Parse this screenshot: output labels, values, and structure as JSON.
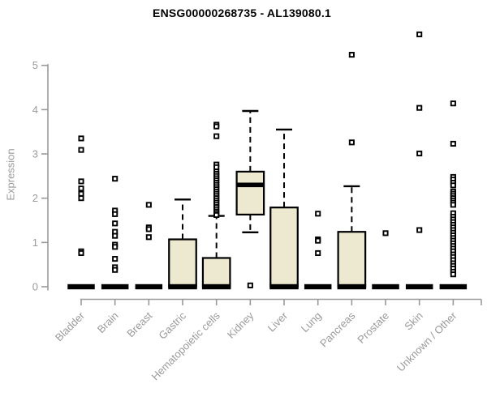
{
  "chart_data": {
    "type": "boxplot",
    "title": "ENSG00000268735 - AL139080.1",
    "ylabel": "Expression",
    "xlabel": "",
    "ylim": [
      0,
      5
    ],
    "yticks": [
      0,
      1,
      2,
      3,
      4,
      5
    ],
    "grid": false,
    "legend": "none",
    "colors": {
      "box_fill": "#EDE8D0",
      "box_stroke": "#000000",
      "median": "#000000",
      "whisker": "#000000",
      "outlier_stroke": "#000000",
      "outlier_fill": "#ffffff",
      "axis": "#999999",
      "tick_label": "#9a9a9a",
      "title": "#000000",
      "background": "#ffffff"
    },
    "categories": [
      "Bladder",
      "Brain",
      "Breast",
      "Gastric",
      "Hematopoietic cells",
      "Kidney",
      "Liver",
      "Lung",
      "Pancreas",
      "Prostate",
      "Skin",
      "Unknown / Other"
    ],
    "series": [
      {
        "name": "Bladder",
        "q1": 0,
        "median": 0,
        "q3": 0,
        "whisker_low": 0,
        "whisker_high": 0,
        "outliers": [
          3.35,
          3.09,
          2.38,
          2.22,
          2.1,
          2.0,
          0.8,
          0.76
        ]
      },
      {
        "name": "Brain",
        "q1": 0,
        "median": 0,
        "q3": 0,
        "whisker_low": 0,
        "whisker_high": 0,
        "outliers": [
          2.44,
          1.72,
          1.64,
          1.43,
          1.24,
          1.15,
          0.95,
          0.9,
          0.63,
          0.44,
          0.38
        ]
      },
      {
        "name": "Breast",
        "q1": 0,
        "median": 0,
        "q3": 0,
        "whisker_low": 0,
        "whisker_high": 0,
        "outliers": [
          1.85,
          1.34,
          1.3,
          1.12
        ]
      },
      {
        "name": "Gastric",
        "q1": 0,
        "median": 0,
        "q3": 1.07,
        "whisker_low": 0,
        "whisker_high": 1.97,
        "outliers": []
      },
      {
        "name": "Hematopoietic cells",
        "q1": 0,
        "median": 0,
        "q3": 0.65,
        "whisker_low": 0,
        "whisker_high": 1.6,
        "outliers": [
          3.66,
          3.62,
          3.4,
          2.76,
          2.7,
          2.6,
          2.55,
          2.5,
          2.45,
          2.4,
          2.35,
          2.3,
          2.25,
          2.2,
          2.15,
          2.1,
          2.05,
          2.0,
          1.95,
          1.9,
          1.85,
          1.8,
          1.75,
          1.7,
          1.66,
          1.62
        ]
      },
      {
        "name": "Kidney",
        "q1": 1.63,
        "median": 2.3,
        "q3": 2.6,
        "whisker_low": 1.23,
        "whisker_high": 3.97,
        "outliers": [
          0.03
        ]
      },
      {
        "name": "Liver",
        "q1": 0,
        "median": 0,
        "q3": 1.79,
        "whisker_low": 0,
        "whisker_high": 3.55,
        "outliers": []
      },
      {
        "name": "Lung",
        "q1": 0,
        "median": 0,
        "q3": 0,
        "whisker_low": 0,
        "whisker_high": 0,
        "outliers": [
          1.65,
          1.07,
          1.04,
          0.76
        ]
      },
      {
        "name": "Pancreas",
        "q1": 0,
        "median": 0,
        "q3": 1.24,
        "whisker_low": 0,
        "whisker_high": 2.27,
        "outliers": [
          5.24,
          3.26
        ]
      },
      {
        "name": "Prostate",
        "q1": 0,
        "median": 0,
        "q3": 0,
        "whisker_low": 0,
        "whisker_high": 0,
        "outliers": [
          1.21
        ]
      },
      {
        "name": "Skin",
        "q1": 0,
        "median": 0,
        "q3": 0,
        "whisker_low": 0,
        "whisker_high": 0,
        "outliers": [
          5.7,
          4.04,
          3.01,
          1.28
        ]
      },
      {
        "name": "Unknown / Other",
        "q1": 0,
        "median": 0,
        "q3": 0,
        "whisker_low": 0,
        "whisker_high": 0,
        "outliers": [
          4.14,
          3.23,
          2.48,
          2.42,
          2.35,
          2.29,
          2.15,
          2.1,
          2.05,
          2.0,
          1.95,
          1.9,
          1.85,
          1.66,
          1.58,
          1.52,
          1.46,
          1.4,
          1.34,
          1.28,
          1.22,
          1.16,
          1.1,
          1.04,
          0.98,
          0.92,
          0.86,
          0.8,
          0.73,
          0.67,
          0.6,
          0.53,
          0.47,
          0.41,
          0.34,
          0.28
        ]
      }
    ]
  }
}
